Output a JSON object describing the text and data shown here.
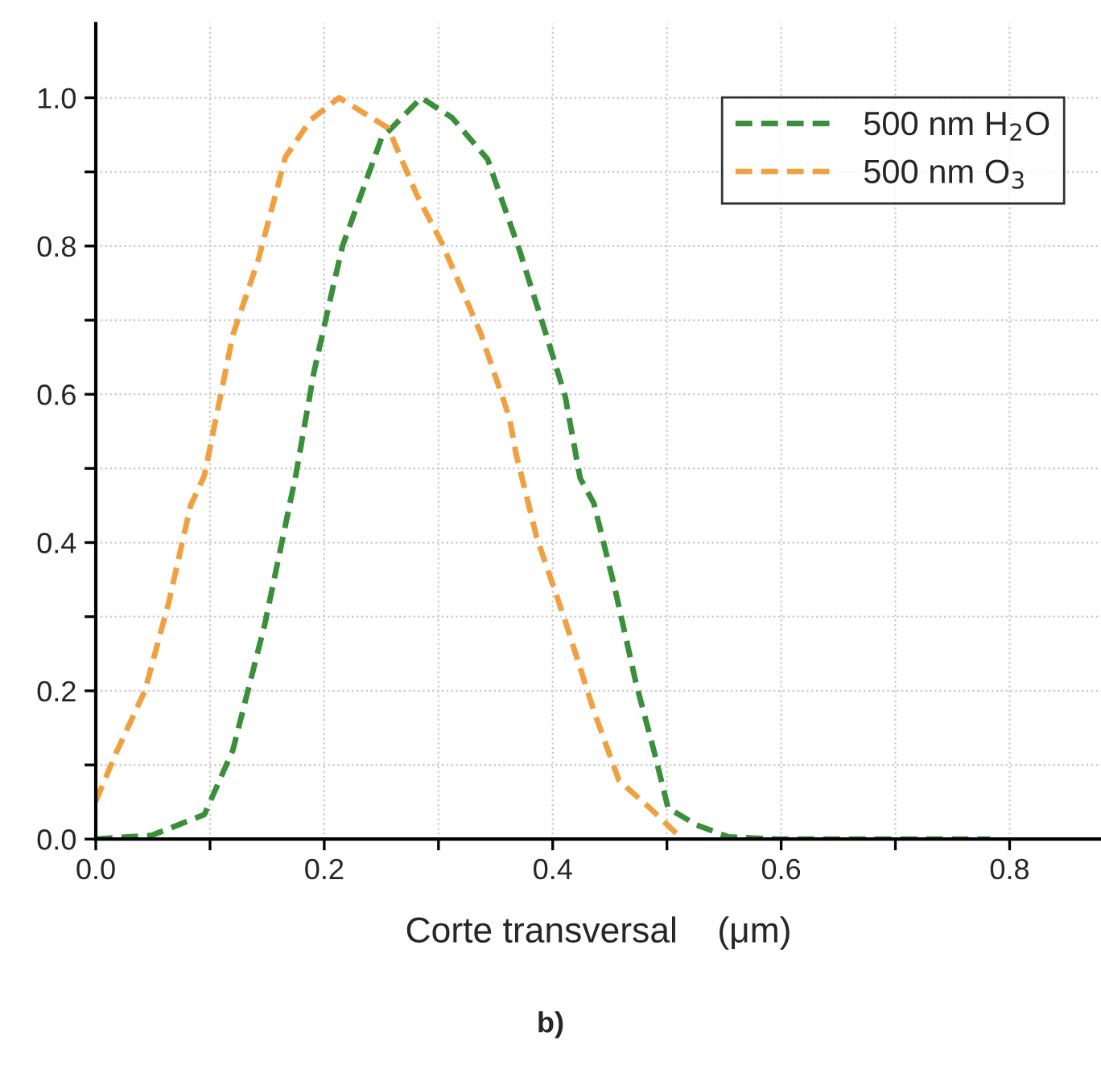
{
  "chart_data": {
    "type": "line",
    "xlabel": "Corte transversal    (μm)",
    "annotations": [
      "b)"
    ],
    "xlim": [
      0,
      0.88
    ],
    "ylim": [
      0,
      1.1
    ],
    "xticks": [
      {
        "value": 0,
        "label": "0.0"
      },
      {
        "value": 0.1,
        "label": null
      },
      0.2,
      {
        "value": 0.3,
        "label": null
      },
      0.4,
      {
        "value": 0.5,
        "label": null
      },
      0.6,
      {
        "value": 0.7,
        "label": null
      },
      0.8
    ],
    "yticks": [
      {
        "value": 0,
        "label": "0.0"
      },
      {
        "value": 0.1,
        "label": null
      },
      0.2,
      {
        "value": 0.3,
        "label": null
      },
      0.4,
      {
        "value": 0.5,
        "label": null
      },
      0.6,
      {
        "value": 0.7,
        "label": null
      },
      0.8,
      {
        "value": 0.9,
        "label": null
      },
      {
        "value": 1.0,
        "label": "1.0"
      }
    ],
    "grid": true,
    "legend": "top right",
    "line_style": "dashed",
    "marker": "none",
    "series": [
      {
        "name": "500 nm H$_{2}$O",
        "color": "#3a8f3a",
        "x": [
          0,
          0.049,
          0.095,
          0.1,
          0.12,
          0.148,
          0.175,
          0.191,
          0.207,
          0.216,
          0.25,
          0.285,
          0.312,
          0.343,
          0.371,
          0.396,
          0.411,
          0.424,
          0.436,
          0.454,
          0.473,
          0.489,
          0.501,
          0.526,
          0.554,
          0.597,
          0.783
        ],
        "values": [
          0,
          0.005,
          0.033,
          0.05,
          0.12,
          0.29,
          0.49,
          0.63,
          0.74,
          0.8,
          0.945,
          1.0,
          0.973,
          0.917,
          0.794,
          0.672,
          0.597,
          0.487,
          0.453,
          0.341,
          0.21,
          0.117,
          0.042,
          0.019,
          0.003,
          0,
          0
        ]
      },
      {
        "name": "500 nm O$_{3}$",
        "color": "#f0a040",
        "x": [
          0,
          0.018,
          0.043,
          0.064,
          0.083,
          0.095,
          0.12,
          0.142,
          0.166,
          0.188,
          0.213,
          0.232,
          0.256,
          0.281,
          0.303,
          0.337,
          0.362,
          0.368,
          0.386,
          0.411,
          0.436,
          0.458,
          0.485,
          0.51
        ],
        "values": [
          0.051,
          0.117,
          0.2,
          0.32,
          0.45,
          0.49,
          0.68,
          0.78,
          0.92,
          0.97,
          1.0,
          0.982,
          0.959,
          0.869,
          0.804,
          0.682,
          0.569,
          0.519,
          0.407,
          0.294,
          0.173,
          0.079,
          0.042,
          0.005
        ]
      }
    ]
  }
}
